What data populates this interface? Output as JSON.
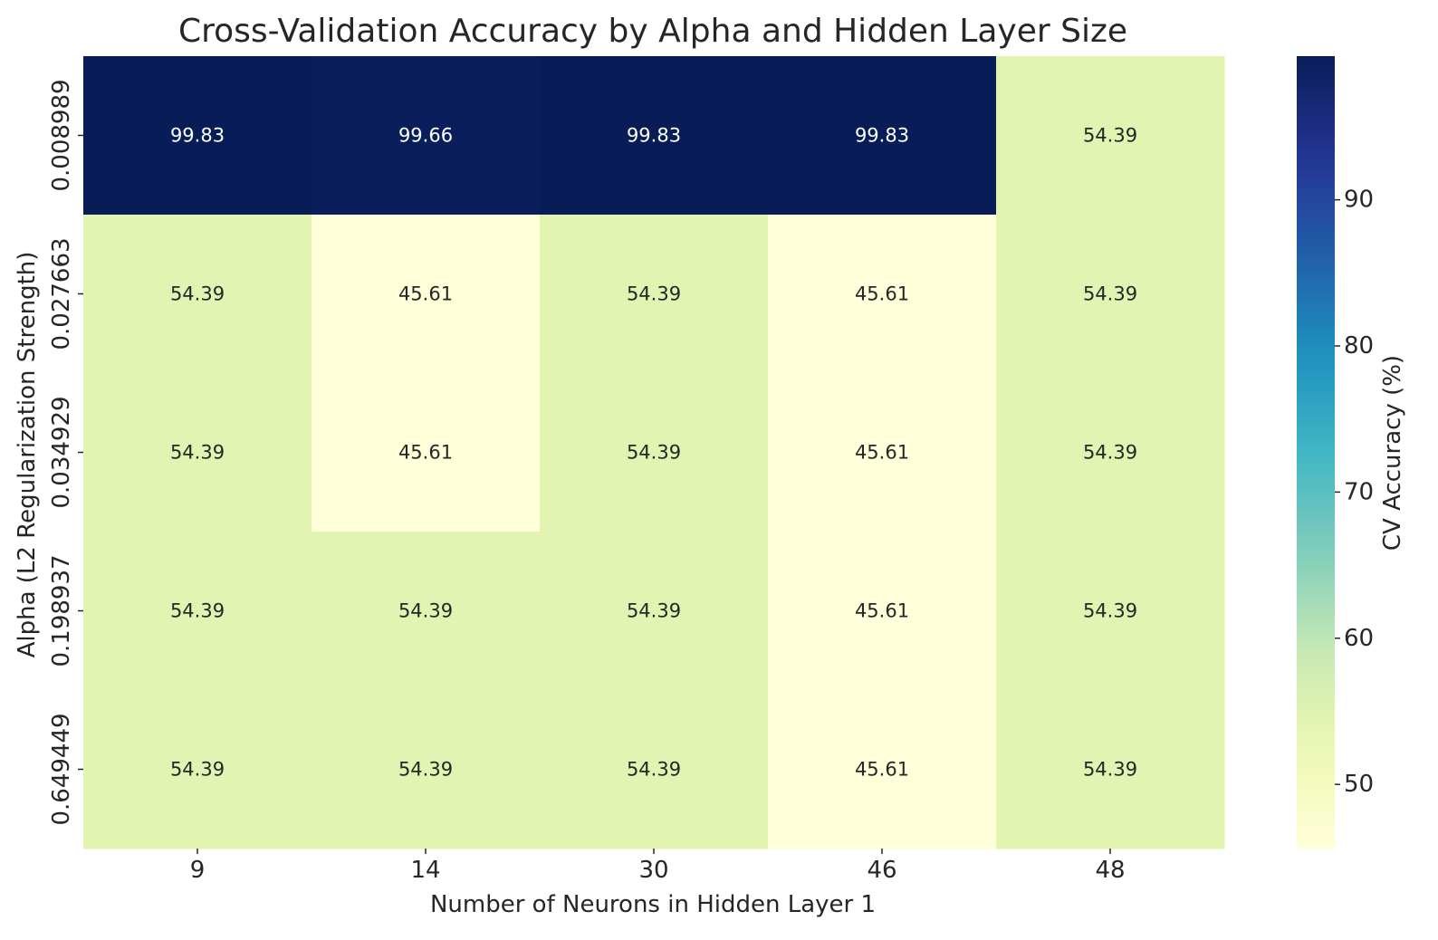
{
  "chart_data": {
    "type": "heatmap",
    "title": "Cross-Validation Accuracy by Alpha and Hidden Layer Size",
    "xlabel": "Number of Neurons in Hidden Layer 1",
    "ylabel": "Alpha (L2 Regularization Strength)",
    "x_categories": [
      "9",
      "14",
      "30",
      "46",
      "48"
    ],
    "y_categories": [
      "0.008989",
      "0.027663",
      "0.034929",
      "0.198937",
      "0.649449"
    ],
    "values": [
      [
        99.83,
        99.66,
        99.83,
        99.83,
        54.39
      ],
      [
        54.39,
        45.61,
        54.39,
        45.61,
        54.39
      ],
      [
        54.39,
        45.61,
        54.39,
        45.61,
        54.39
      ],
      [
        54.39,
        54.39,
        54.39,
        45.61,
        54.39
      ],
      [
        54.39,
        54.39,
        54.39,
        45.61,
        54.39
      ]
    ],
    "value_format": "2 decimals",
    "colormap": "YlGnBu",
    "vmin": 45.61,
    "vmax": 99.83,
    "colorbar": {
      "label": "CV Accuracy (%)",
      "ticks": [
        50,
        60,
        70,
        80,
        90
      ]
    }
  }
}
